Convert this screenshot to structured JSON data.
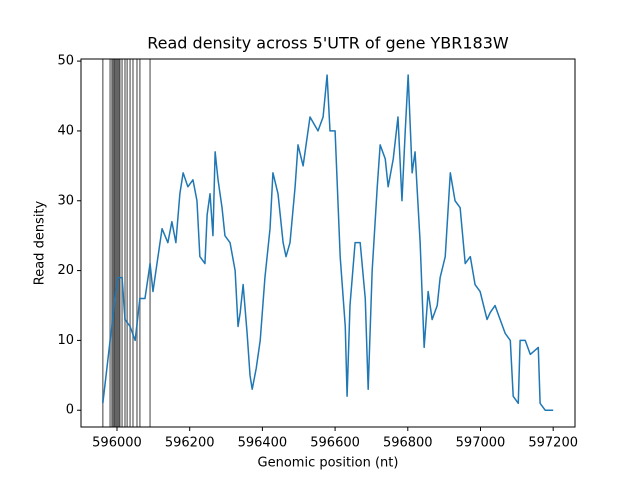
{
  "chart_data": {
    "type": "line",
    "title": "Read density across 5'UTR of gene YBR183W",
    "xlabel": "Genomic position (nt)",
    "ylabel": "Read density",
    "x": [
      595961,
      595970,
      595981,
      595986,
      595994,
      596003,
      596014,
      596022,
      596036,
      596050,
      596063,
      596077,
      596091,
      596099,
      596110,
      596124,
      596140,
      596151,
      596162,
      596173,
      596182,
      596195,
      596209,
      596220,
      596228,
      596242,
      596248,
      596256,
      596264,
      596270,
      596278,
      596289,
      596297,
      596311,
      596325,
      596333,
      596339,
      596347,
      596358,
      596366,
      596372,
      596383,
      596394,
      596407,
      596421,
      596429,
      596443,
      596457,
      596465,
      596476,
      596490,
      596498,
      596512,
      596531,
      596553,
      596567,
      596578,
      596586,
      596600,
      596614,
      596628,
      596633,
      596641,
      596655,
      596669,
      596683,
      596691,
      596702,
      596716,
      596724,
      596738,
      596746,
      596760,
      596773,
      596784,
      596793,
      596801,
      596812,
      596820,
      596834,
      596845,
      596856,
      596867,
      596881,
      596889,
      596903,
      596917,
      596930,
      596944,
      596958,
      596972,
      596985,
      596999,
      597018,
      597027,
      597040,
      597054,
      597068,
      597082,
      597090,
      597104,
      597109,
      597123,
      597137,
      597159,
      597164,
      597178,
      597200
    ],
    "series": [
      {
        "name": "Read density",
        "color": "#1f77b4",
        "values": [
          1,
          5,
          10,
          12,
          16,
          19,
          19,
          13,
          12,
          10,
          16,
          16,
          21,
          17,
          21,
          26,
          24,
          27,
          24,
          31,
          34,
          32,
          33,
          30,
          22,
          21,
          28,
          31,
          25,
          37,
          33,
          29,
          25,
          24,
          20,
          12,
          14,
          18,
          11,
          5,
          3,
          6,
          10,
          19,
          26,
          34,
          31,
          24,
          22,
          24,
          32,
          38,
          35,
          42,
          40,
          42,
          48,
          40,
          40,
          22,
          12,
          2,
          15,
          24,
          24,
          16,
          3,
          20,
          32,
          38,
          36,
          32,
          36,
          42,
          30,
          40,
          48,
          34,
          37,
          24,
          9,
          17,
          13,
          15,
          19,
          22,
          34,
          30,
          29,
          21,
          22,
          18,
          17,
          13,
          14,
          15,
          13,
          11,
          10,
          2,
          1,
          10,
          10,
          8,
          9,
          1,
          0,
          0
        ]
      }
    ],
    "vlines": [
      595961,
      595981,
      595986,
      595989,
      595992,
      595994,
      595997,
      596000,
      596003,
      596006,
      596008,
      596014,
      596022,
      596028,
      596036,
      596044,
      596055,
      596063,
      596091
    ],
    "vline_color": "#000000",
    "xlim": [
      595901,
      597260
    ],
    "ylim": [
      -2.4,
      50.3
    ],
    "xticks": [
      596000,
      596200,
      596400,
      596600,
      596800,
      597000,
      597200
    ],
    "yticks": [
      0,
      10,
      20,
      30,
      40,
      50
    ]
  }
}
